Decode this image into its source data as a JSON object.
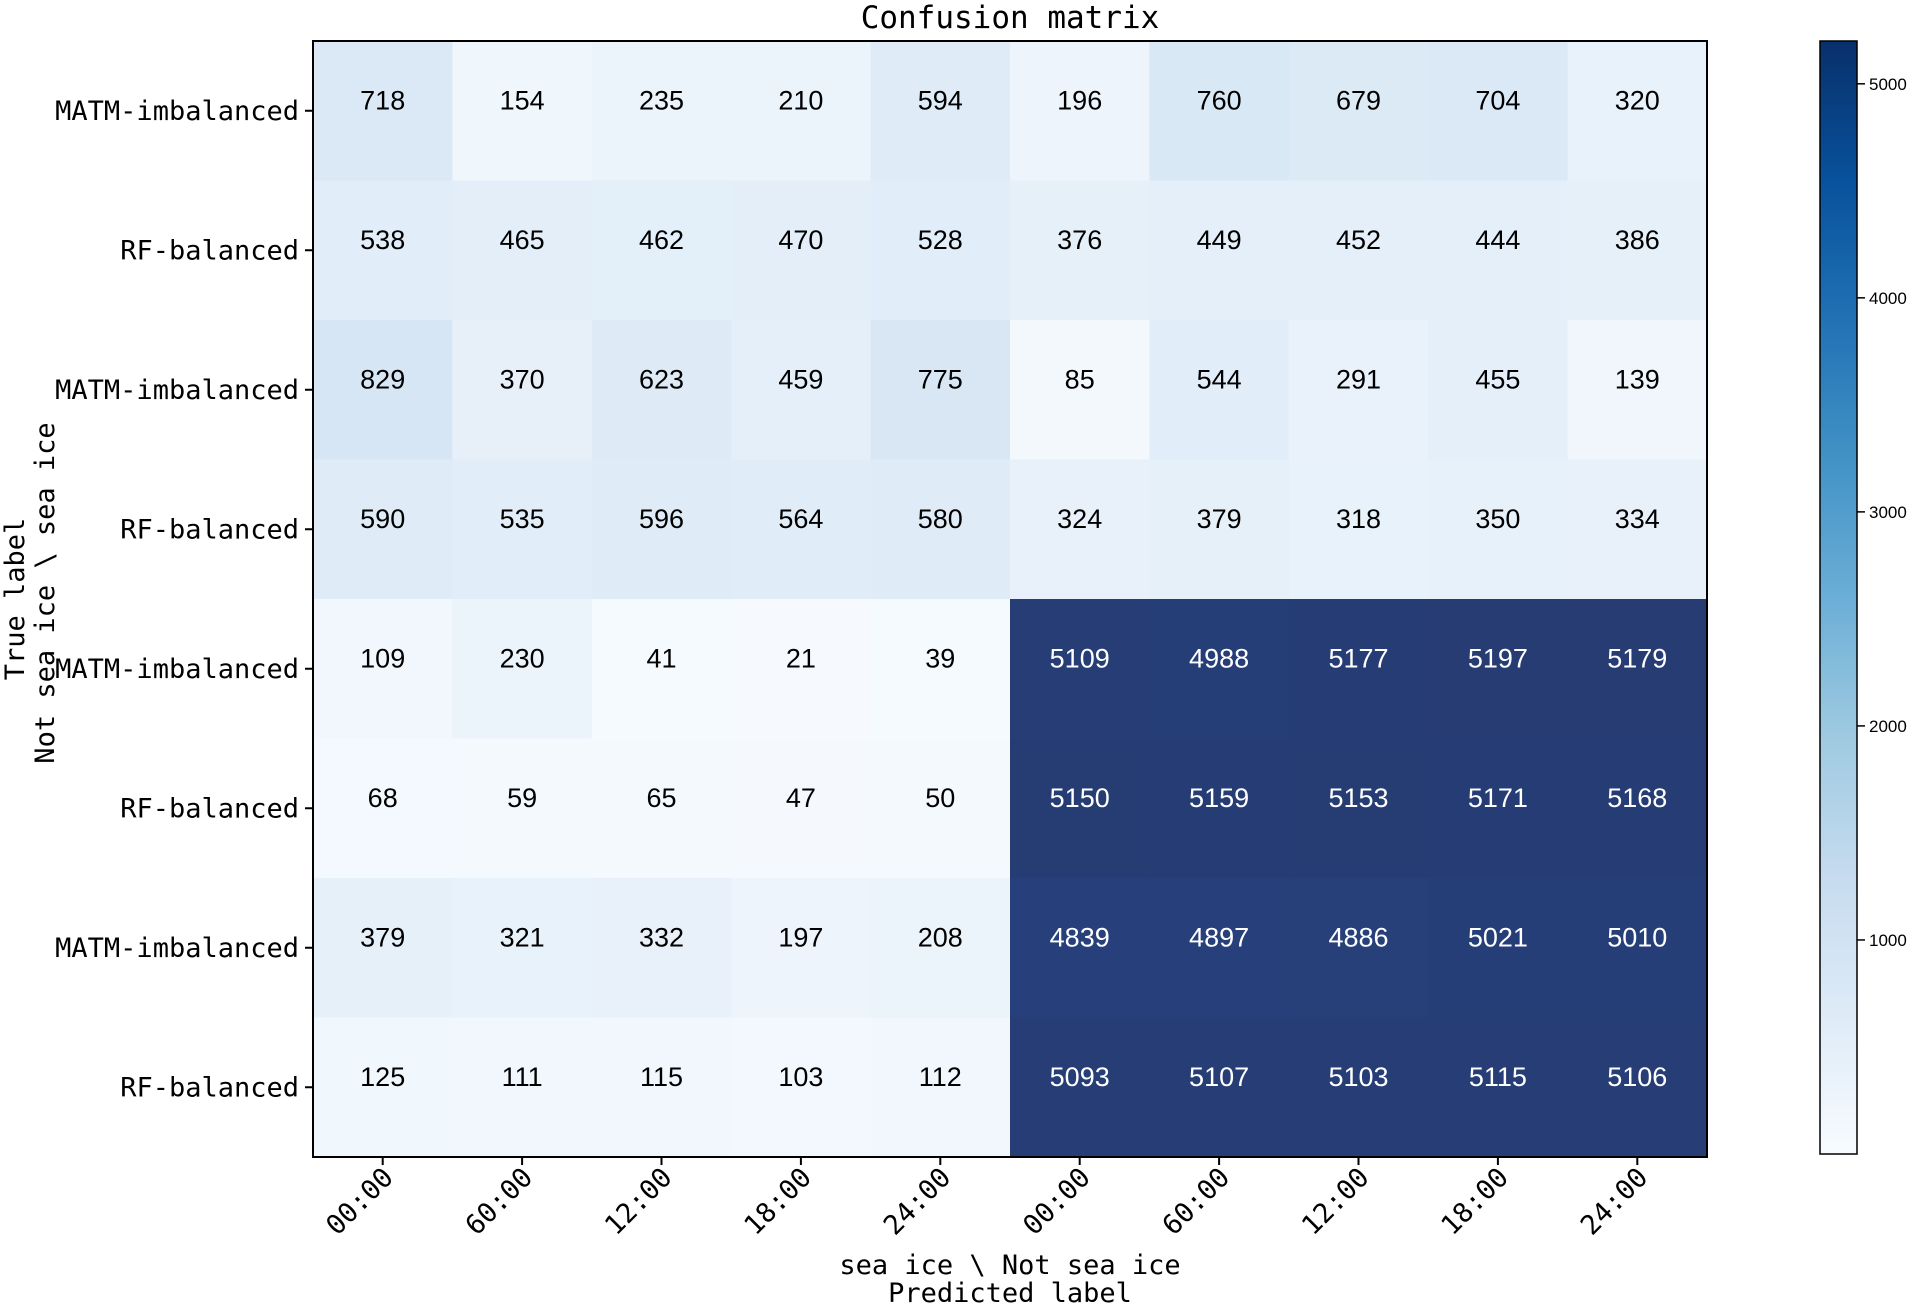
{
  "chart_data": {
    "type": "heatmap",
    "title": "Confusion matrix",
    "xlabel_group": "sea ice \\ Not sea ice",
    "xlabel": "Predicted label",
    "ylabel": "True label",
    "ylabel_group": "Not sea ice \\ sea ice",
    "x_categories": [
      "00:00",
      "60:00",
      "12:00",
      "18:00",
      "24:00",
      "00:00",
      "60:00",
      "12:00",
      "18:00",
      "24:00"
    ],
    "y_categories": [
      "MATM-imbalanced",
      "RF-balanced",
      "MATM-imbalanced",
      "RF-balanced",
      "MATM-imbalanced",
      "RF-balanced",
      "MATM-imbalanced",
      "RF-balanced"
    ],
    "values": [
      [
        718,
        154,
        235,
        210,
        594,
        196,
        760,
        679,
        704,
        320
      ],
      [
        538,
        465,
        462,
        470,
        528,
        376,
        449,
        452,
        444,
        386
      ],
      [
        829,
        370,
        623,
        459,
        775,
        85,
        544,
        291,
        455,
        139
      ],
      [
        590,
        535,
        596,
        564,
        580,
        324,
        379,
        318,
        350,
        334
      ],
      [
        109,
        230,
        41,
        21,
        39,
        5109,
        4988,
        5177,
        5197,
        5179
      ],
      [
        68,
        59,
        65,
        47,
        50,
        5150,
        5159,
        5153,
        5171,
        5168
      ],
      [
        379,
        321,
        332,
        197,
        208,
        4839,
        4897,
        4886,
        5021,
        5010
      ],
      [
        125,
        111,
        115,
        103,
        112,
        5093,
        5107,
        5103,
        5115,
        5106
      ]
    ],
    "colormap": "Blues",
    "colorbar": {
      "ticks": [
        1000,
        2000,
        3000,
        4000,
        5000
      ],
      "range": [
        0,
        5200
      ]
    },
    "grid": false,
    "legend": "colorbar-right"
  }
}
